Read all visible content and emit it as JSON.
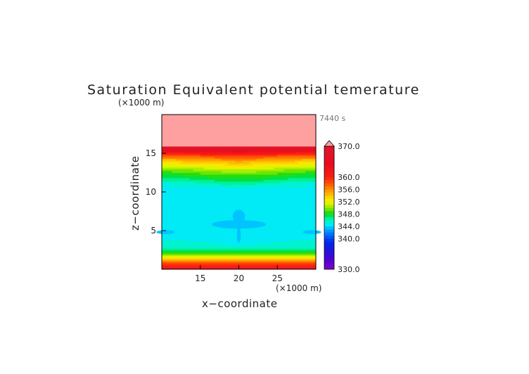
{
  "chart_data": {
    "type": "heatmap",
    "title": "Saturation Equivalent potential temerature",
    "xlabel": "x−coordinate",
    "ylabel": "z−coordinate",
    "x_unit": "(×1000 m)",
    "y_unit": "(×1000 m)",
    "time_label": "7440 s",
    "xlim": [
      10,
      30
    ],
    "ylim": [
      0,
      20
    ],
    "x_ticks": [
      15,
      20,
      25
    ],
    "y_ticks": [
      5,
      10,
      15
    ],
    "grid": false,
    "colorbar": {
      "placement": "right",
      "min": 330,
      "max": 370,
      "step": 1,
      "labels": [
        "370.0",
        "360.0",
        "356.0",
        "352.0",
        "348.0",
        "344.0",
        "340.0",
        "330.0"
      ],
      "label_values": [
        370,
        360,
        356,
        352,
        348,
        344,
        340,
        330
      ],
      "overflow_arrow": "top"
    },
    "z_profile": [
      {
        "z": 0.0,
        "value": 364
      },
      {
        "z": 0.3,
        "value": 361
      },
      {
        "z": 0.8,
        "value": 358
      },
      {
        "z": 1.2,
        "value": 355
      },
      {
        "z": 1.6,
        "value": 352
      },
      {
        "z": 2.0,
        "value": 349
      },
      {
        "z": 2.4,
        "value": 347
      },
      {
        "z": 3.0,
        "value": 345.6
      },
      {
        "z": 3.6,
        "value": 345.2
      },
      {
        "z": 4.5,
        "value": 344.5
      },
      {
        "z": 6.0,
        "value": 344.2
      },
      {
        "z": 9.0,
        "value": 344.1
      },
      {
        "z": 10.5,
        "value": 344.4
      },
      {
        "z": 11.0,
        "value": 345.5
      },
      {
        "z": 11.6,
        "value": 347
      },
      {
        "z": 12.2,
        "value": 348.5
      },
      {
        "z": 12.8,
        "value": 350
      },
      {
        "z": 13.4,
        "value": 352
      },
      {
        "z": 14.0,
        "value": 354.5
      },
      {
        "z": 14.6,
        "value": 357.5
      },
      {
        "z": 15.0,
        "value": 361
      },
      {
        "z": 15.4,
        "value": 366
      },
      {
        "z": 16.0,
        "value": 371
      },
      {
        "z": 20.0,
        "value": 371
      }
    ],
    "features": [
      {
        "x": 20.0,
        "z": 5.8,
        "rx": 3.5,
        "rz": 0.55,
        "value": 343.0
      },
      {
        "x": 20.0,
        "z": 6.8,
        "rx": 0.8,
        "rz": 0.9,
        "value": 343.0
      },
      {
        "x": 20.0,
        "z": 4.4,
        "rx": 0.25,
        "rz": 1.0,
        "value": 343.0
      },
      {
        "x": 10.5,
        "z": 4.8,
        "rx": 1.2,
        "rz": 0.25,
        "value": 343.2
      },
      {
        "x": 29.5,
        "z": 4.8,
        "rx": 1.2,
        "rz": 0.25,
        "value": 343.2
      },
      {
        "x": 20.0,
        "z": 10.7,
        "rx": 1.5,
        "rz": 0.25,
        "value": 345.0
      }
    ]
  }
}
